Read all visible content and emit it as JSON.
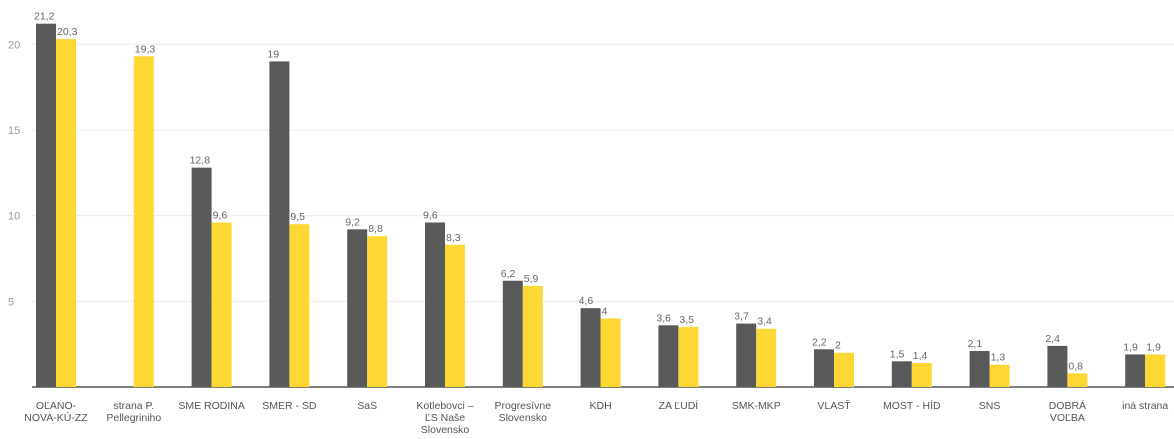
{
  "chart_data": {
    "type": "bar",
    "categories": [
      "OĽANO-NOVA-KÚ-ZZ",
      "strana P. Pellegriniho",
      "SME RODINA",
      "SMER - SD",
      "SaS",
      "Kotlebovci – ĽS Naše Slovensko",
      "Progresívne Slovensko",
      "KDH",
      "ZA ĽUDÍ",
      "SMK-MKP",
      "VLASŤ",
      "MOST - HÍD",
      "SNS",
      "DOBRÁ VOĽBA",
      "iná strana"
    ],
    "category_lines": [
      [
        "OĽANO-",
        "NOVA-KÚ-ZZ"
      ],
      [
        "strana P.",
        "Pellegriniho"
      ],
      [
        "SME RODINA"
      ],
      [
        "SMER - SD"
      ],
      [
        "SaS"
      ],
      [
        "Kotlebovci –",
        "ĽS Naše",
        "Slovensko"
      ],
      [
        "Progresívne",
        "Slovensko"
      ],
      [
        "KDH"
      ],
      [
        "ZA ĽUDÍ"
      ],
      [
        "SMK-MKP"
      ],
      [
        "VLASŤ"
      ],
      [
        "MOST - HÍD"
      ],
      [
        "SNS"
      ],
      [
        "DOBRÁ",
        "VOĽBA"
      ],
      [
        "iná strana"
      ]
    ],
    "series": [
      {
        "color": "#595959",
        "values": [
          21.2,
          null,
          12.8,
          19,
          9.2,
          9.6,
          6.2,
          4.6,
          3.6,
          3.7,
          2.2,
          1.5,
          2.1,
          2.4,
          1.9
        ],
        "labels": [
          "21,2",
          "",
          "12,8",
          "19",
          "9,2",
          "9,6",
          "6,2",
          "4,6",
          "3,6",
          "3,7",
          "2,2",
          "1,5",
          "2,1",
          "2,4",
          "1,9"
        ]
      },
      {
        "color": "#fdd835",
        "values": [
          20.3,
          19.3,
          9.6,
          9.5,
          8.8,
          8.3,
          5.9,
          4,
          3.5,
          3.4,
          2,
          1.4,
          1.3,
          0.8,
          1.9
        ],
        "labels": [
          "20,3",
          "19,3",
          "9,6",
          "9,5",
          "8,8",
          "8,3",
          "5,9",
          "4",
          "3,5",
          "3,4",
          "2",
          "1,4",
          "1,3",
          "0,8",
          "1,9"
        ]
      }
    ],
    "ylim": [
      0,
      22
    ],
    "yticks": [
      5,
      10,
      15,
      20
    ],
    "grid": true
  }
}
